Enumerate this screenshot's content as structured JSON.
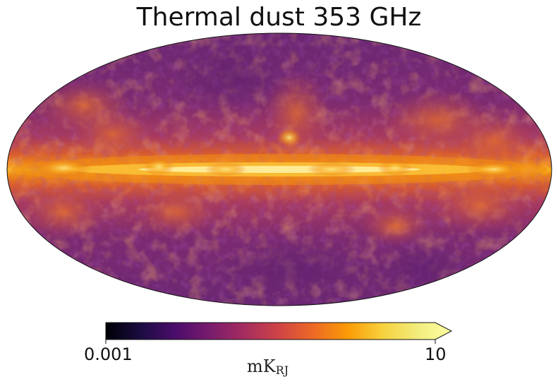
{
  "title": "Thermal dust 353 GHz",
  "map": {
    "projection": "mollweide",
    "colormap": "inferno"
  },
  "colorbar": {
    "min_label": "0.001",
    "max_label": "10",
    "unit_main": "mK",
    "unit_sub": "RJ",
    "scale": "log",
    "extend": "max"
  }
}
